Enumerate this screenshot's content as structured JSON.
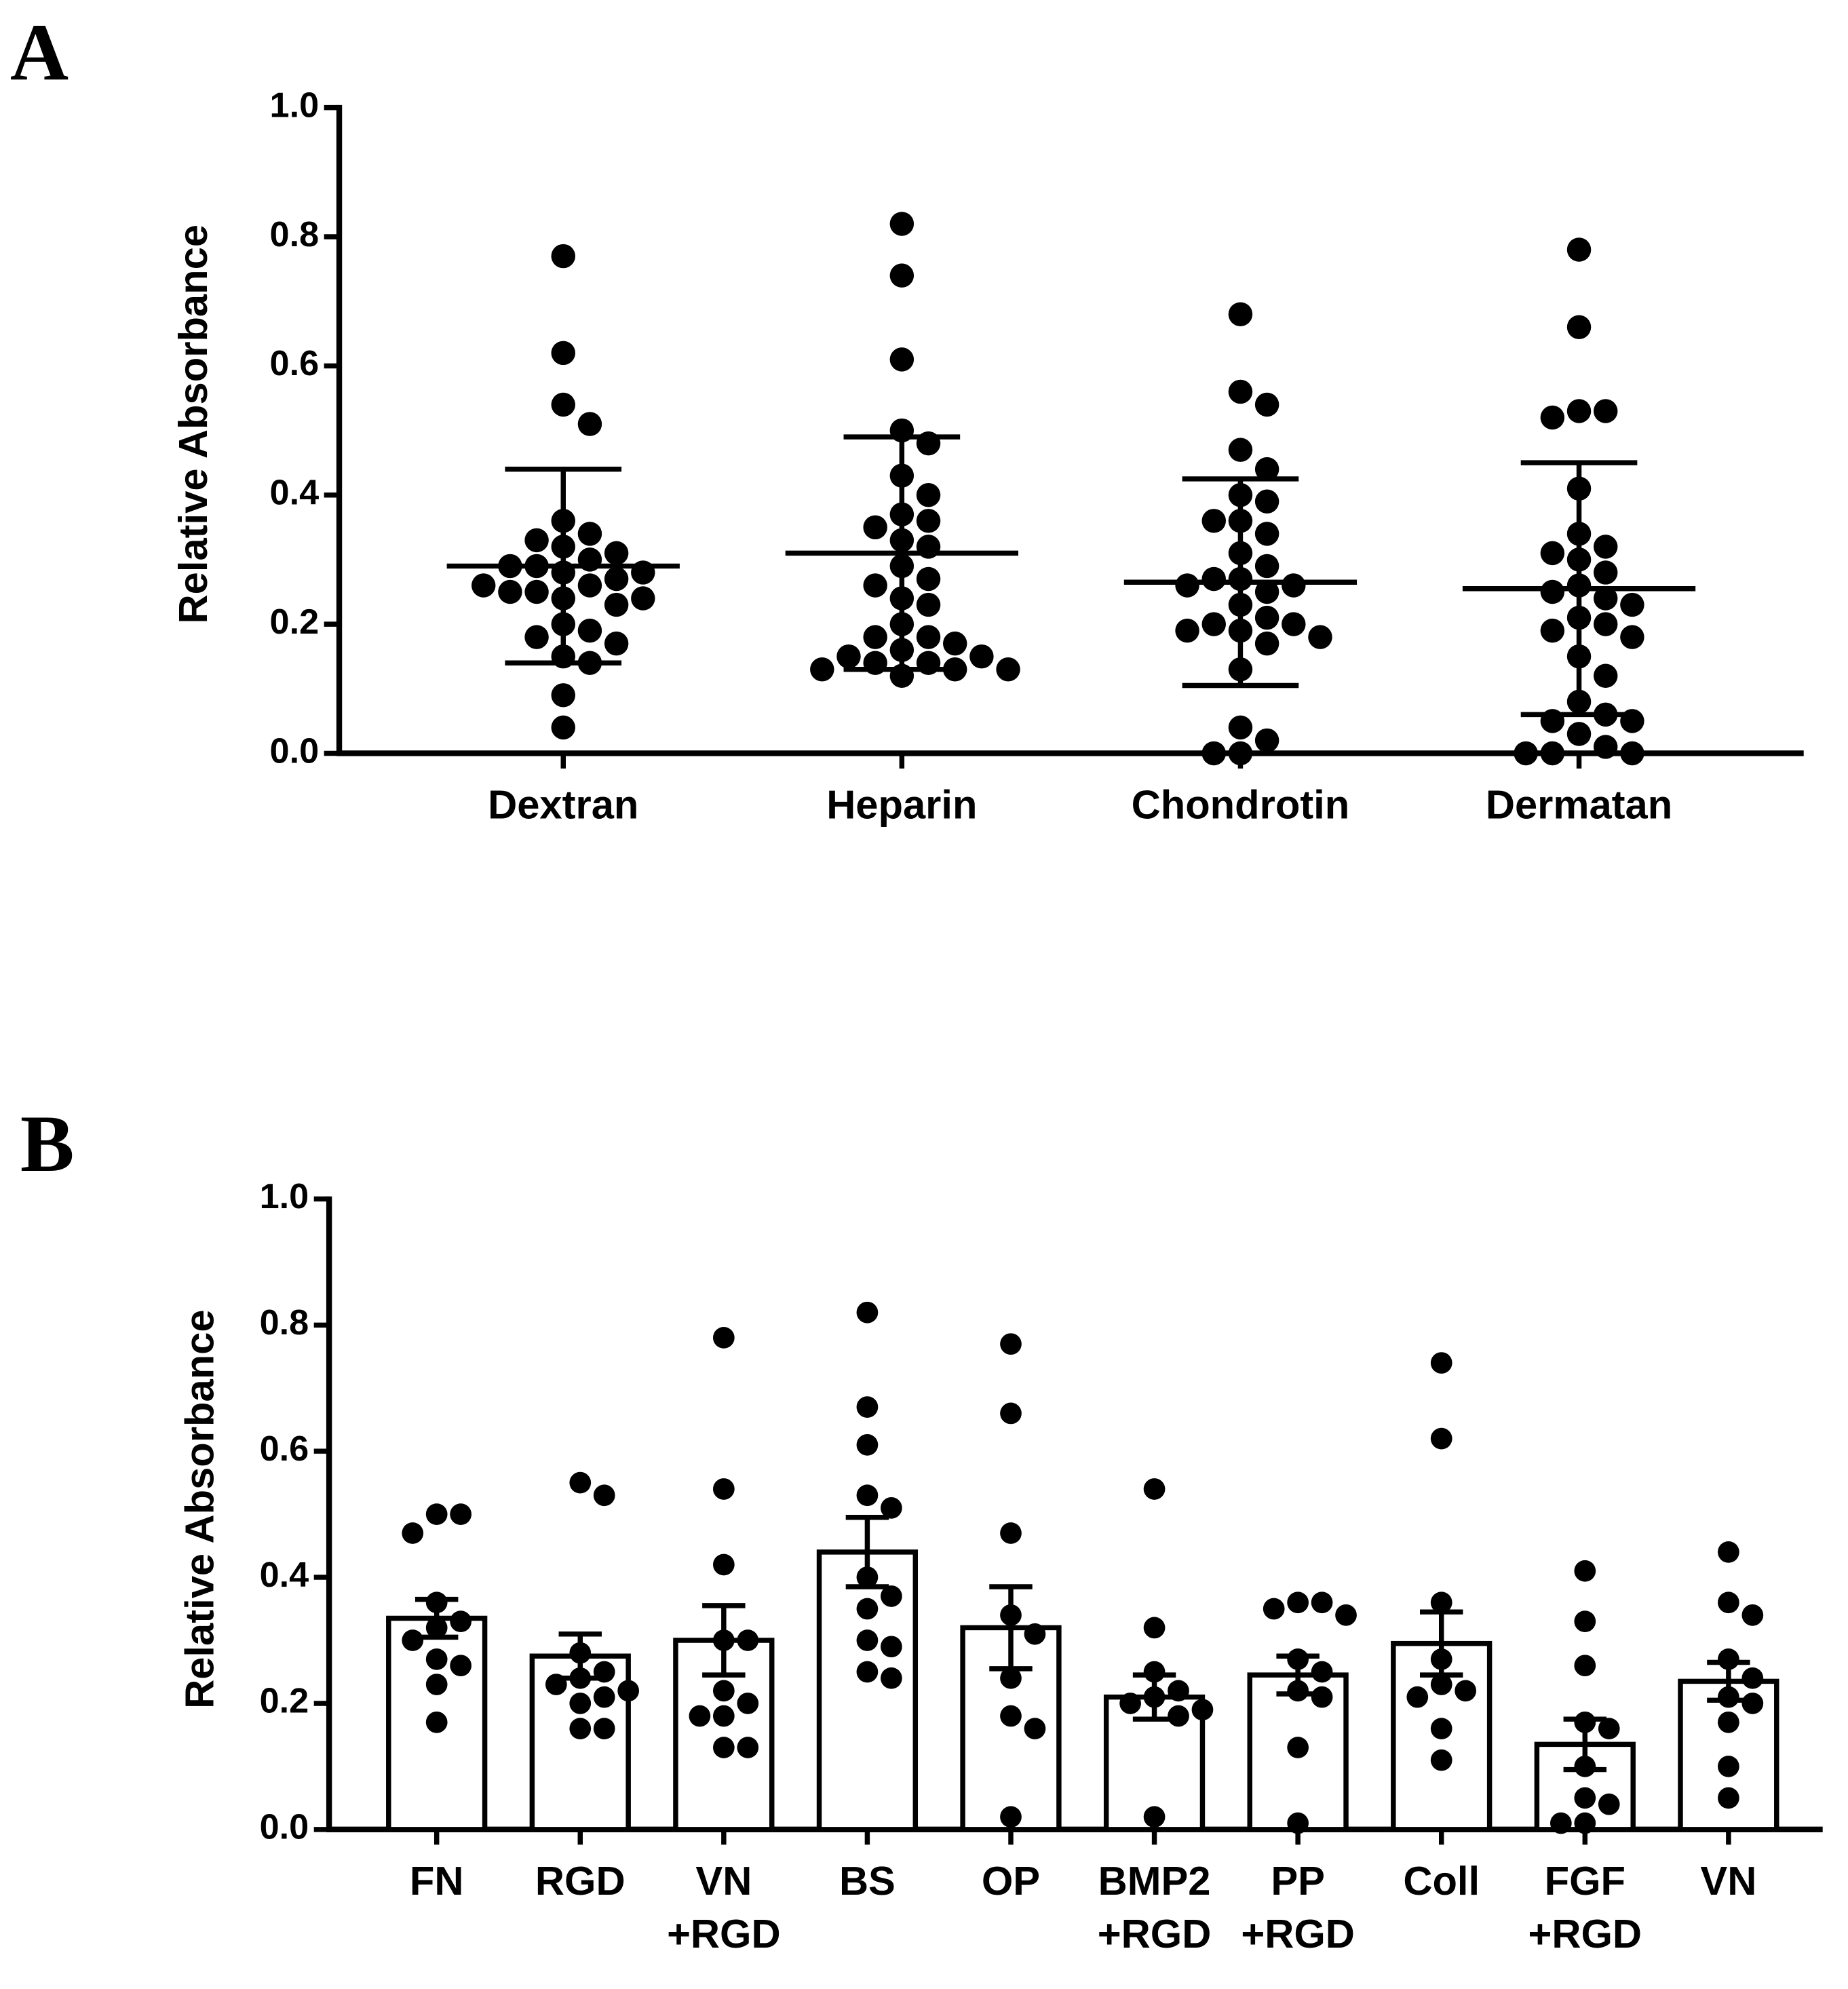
{
  "chart_data": [
    {
      "type": "scatter",
      "label": "A",
      "ylabel": "Relative Absorbance",
      "categories": [
        [
          "Dextran"
        ],
        [
          "Heparin"
        ],
        [
          "Chondrotin"
        ],
        [
          "Dermatan"
        ]
      ],
      "values": [
        0.29,
        0.31,
        0.265,
        0.255
      ],
      "errors": [
        0.15,
        0.18,
        0.16,
        0.195
      ],
      "points": [
        [
          0.77,
          0.62,
          0.54,
          0.51,
          0.36,
          0.34,
          0.33,
          0.32,
          0.31,
          0.3,
          0.29,
          0.29,
          0.28,
          0.28,
          0.27,
          0.26,
          0.26,
          0.25,
          0.25,
          0.24,
          0.24,
          0.23,
          0.2,
          0.19,
          0.18,
          0.17,
          0.15,
          0.14,
          0.09,
          0.04
        ],
        [
          0.82,
          0.74,
          0.61,
          0.5,
          0.48,
          0.43,
          0.4,
          0.37,
          0.36,
          0.35,
          0.33,
          0.32,
          0.29,
          0.27,
          0.26,
          0.24,
          0.23,
          0.2,
          0.18,
          0.18,
          0.17,
          0.16,
          0.15,
          0.15,
          0.14,
          0.14,
          0.13,
          0.13,
          0.13,
          0.12
        ],
        [
          0.68,
          0.56,
          0.54,
          0.47,
          0.44,
          0.4,
          0.39,
          0.36,
          0.36,
          0.34,
          0.31,
          0.29,
          0.27,
          0.27,
          0.26,
          0.26,
          0.25,
          0.23,
          0.21,
          0.2,
          0.2,
          0.19,
          0.19,
          0.18,
          0.17,
          0.13,
          0.04,
          0.02,
          0.0,
          0.0
        ],
        [
          0.78,
          0.66,
          0.53,
          0.53,
          0.52,
          0.41,
          0.34,
          0.32,
          0.31,
          0.3,
          0.28,
          0.26,
          0.25,
          0.24,
          0.23,
          0.21,
          0.2,
          0.19,
          0.18,
          0.15,
          0.12,
          0.08,
          0.06,
          0.05,
          0.05,
          0.03,
          0.01,
          0.0,
          0.0,
          0.0
        ]
      ],
      "color": "#000000",
      "ylim": [
        0,
        1
      ],
      "yticks": [
        {
          "value": 0,
          "label": "0.0"
        },
        {
          "value": 0.2,
          "label": "0.2"
        },
        {
          "value": 0.4,
          "label": "0.4"
        },
        {
          "value": 0.6,
          "label": "0.6"
        },
        {
          "value": 0.8,
          "label": "0.8"
        },
        {
          "value": 1,
          "label": "1.0"
        }
      ]
    },
    {
      "type": "bar",
      "label": "B",
      "ylabel": "Relative Absorbance",
      "categories": [
        [
          "FN"
        ],
        [
          "RGD"
        ],
        [
          "VN",
          "+RGD"
        ],
        [
          "BS"
        ],
        [
          "OP"
        ],
        [
          "BMP2",
          "+RGD"
        ],
        [
          "PP",
          "+RGD"
        ],
        [
          "Coll"
        ],
        [
          "FGF",
          "+RGD"
        ],
        [
          "VN"
        ]
      ],
      "values": [
        0.335,
        0.275,
        0.3,
        0.44,
        0.32,
        0.21,
        0.245,
        0.295,
        0.135,
        0.235
      ],
      "errors": [
        0.03,
        0.035,
        0.055,
        0.055,
        0.065,
        0.035,
        0.03,
        0.05,
        0.04,
        0.03
      ],
      "points": [
        [
          0.5,
          0.5,
          0.47,
          0.36,
          0.33,
          0.32,
          0.3,
          0.27,
          0.26,
          0.23,
          0.17
        ],
        [
          0.55,
          0.53,
          0.28,
          0.25,
          0.24,
          0.23,
          0.22,
          0.21,
          0.2,
          0.16,
          0.16
        ],
        [
          0.78,
          0.54,
          0.42,
          0.3,
          0.3,
          0.22,
          0.2,
          0.18,
          0.18,
          0.13,
          0.13
        ],
        [
          0.82,
          0.67,
          0.61,
          0.53,
          0.51,
          0.4,
          0.37,
          0.35,
          0.3,
          0.29,
          0.25,
          0.24
        ],
        [
          0.77,
          0.66,
          0.47,
          0.34,
          0.31,
          0.24,
          0.18,
          0.16,
          0.02
        ],
        [
          0.54,
          0.32,
          0.25,
          0.22,
          0.21,
          0.2,
          0.19,
          0.18,
          0.02
        ],
        [
          0.36,
          0.36,
          0.35,
          0.34,
          0.27,
          0.25,
          0.22,
          0.21,
          0.13,
          0.01
        ],
        [
          0.74,
          0.62,
          0.36,
          0.27,
          0.23,
          0.22,
          0.21,
          0.16,
          0.11
        ],
        [
          0.41,
          0.33,
          0.26,
          0.17,
          0.16,
          0.1,
          0.05,
          0.04,
          0.01,
          0.01
        ],
        [
          0.44,
          0.36,
          0.34,
          0.27,
          0.24,
          0.21,
          0.2,
          0.17,
          0.1,
          0.05
        ]
      ],
      "color": "#000000",
      "ylim": [
        0,
        1
      ],
      "yticks": [
        {
          "value": 0,
          "label": "0.0"
        },
        {
          "value": 0.2,
          "label": "0.2"
        },
        {
          "value": 0.4,
          "label": "0.4"
        },
        {
          "value": 0.6,
          "label": "0.6"
        },
        {
          "value": 0.8,
          "label": "0.8"
        },
        {
          "value": 1,
          "label": "1.0"
        }
      ]
    }
  ]
}
